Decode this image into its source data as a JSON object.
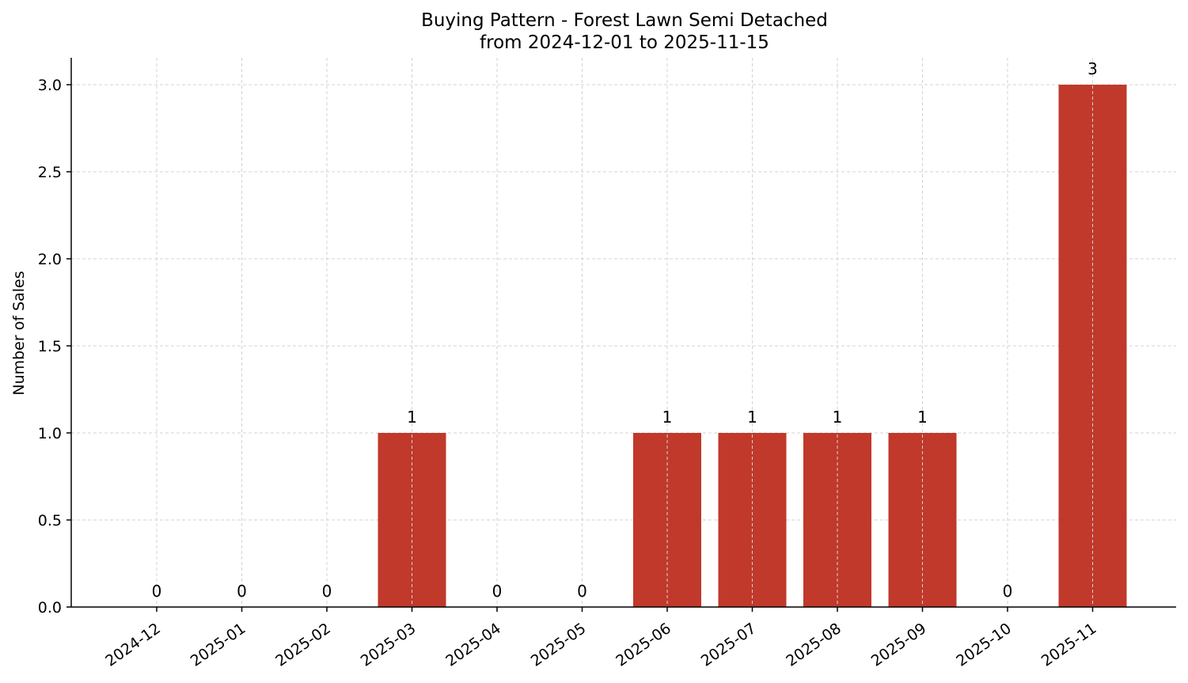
{
  "chart_data": {
    "type": "bar",
    "title": "Buying Pattern - Forest Lawn Semi Detached",
    "subtitle": "from 2024-12-01 to 2025-11-15",
    "xlabel": "",
    "ylabel": "Number of Sales",
    "categories": [
      "2024-12",
      "2025-01",
      "2025-02",
      "2025-03",
      "2025-04",
      "2025-05",
      "2025-06",
      "2025-07",
      "2025-08",
      "2025-09",
      "2025-10",
      "2025-11"
    ],
    "values": [
      0,
      0,
      0,
      1,
      0,
      0,
      1,
      1,
      1,
      1,
      0,
      3
    ],
    "value_labels": [
      "0",
      "0",
      "0",
      "1",
      "0",
      "0",
      "1",
      "1",
      "1",
      "1",
      "0",
      "3"
    ],
    "ylim": [
      0,
      3.15
    ],
    "yticks": [
      "0.0",
      "0.5",
      "1.0",
      "1.5",
      "2.0",
      "2.5",
      "3.0"
    ],
    "ytick_values": [
      0,
      0.5,
      1.0,
      1.5,
      2.0,
      2.5,
      3.0
    ],
    "grid": true,
    "legend": null,
    "bar_color": "#c0392b",
    "grid_color": "#d3d3d3"
  }
}
